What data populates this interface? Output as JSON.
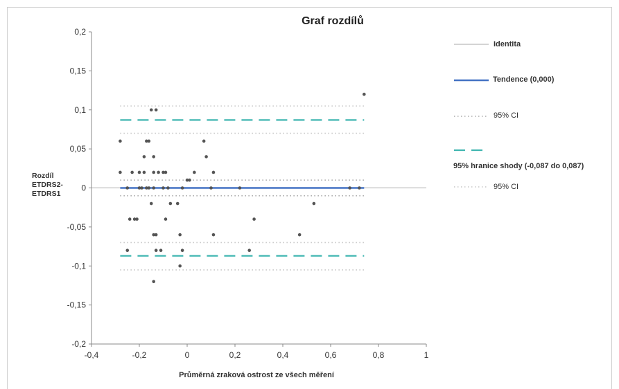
{
  "chart_data": {
    "type": "scatter",
    "title": "Graf rozdílů",
    "xlabel": "Průměrná zraková ostrost ze všech měření",
    "ylabel": [
      "Rozdíl",
      "ETDRS2-",
      "ETDRS1"
    ],
    "xlim": [
      -0.4,
      1
    ],
    "ylim": [
      -0.2,
      0.2
    ],
    "x_ticks": [
      "-0,4",
      "-0,2",
      "0",
      "0,2",
      "0,4",
      "0,6",
      "0,8",
      "1"
    ],
    "y_ticks": [
      "0,2",
      "0,15",
      "0,1",
      "0,05",
      "0",
      "-0,05",
      "-0,1",
      "-0,15",
      "-0,2"
    ],
    "grid": false,
    "legend_position": "right",
    "reference_lines": {
      "identity": 0,
      "tendence": 0.0,
      "loa_lower": -0.087,
      "loa_upper": 0.087,
      "tendence_ci": [
        -0.01,
        0.01
      ],
      "loa_upper_ci": [
        0.07,
        0.105
      ],
      "loa_lower_ci": [
        -0.105,
        -0.07
      ],
      "line_x_range": [
        -0.28,
        0.74
      ]
    },
    "legend": [
      {
        "label": "Identita",
        "style": "thin-gray",
        "bold": true
      },
      {
        "label": "Tendence (0,000)",
        "style": "thick-blue",
        "bold": true
      },
      {
        "label": "95% CI",
        "style": "dotted-gray",
        "bold": false
      },
      {
        "label": "95% hranice shody (-0,087 do 0,087)",
        "style": "dashed-teal",
        "bold": true
      },
      {
        "label": "95% CI",
        "style": "dotted-light",
        "bold": false
      }
    ],
    "points": [
      [
        -0.28,
        0.06
      ],
      [
        -0.28,
        0.02
      ],
      [
        -0.25,
        0.0
      ],
      [
        -0.25,
        -0.08
      ],
      [
        -0.24,
        -0.04
      ],
      [
        -0.23,
        0.02
      ],
      [
        -0.22,
        -0.04
      ],
      [
        -0.21,
        -0.04
      ],
      [
        -0.2,
        0.0
      ],
      [
        -0.2,
        0.02
      ],
      [
        -0.19,
        0.0
      ],
      [
        -0.18,
        0.04
      ],
      [
        -0.18,
        0.02
      ],
      [
        -0.17,
        0.06
      ],
      [
        -0.17,
        0.0
      ],
      [
        -0.16,
        0.06
      ],
      [
        -0.16,
        0.0
      ],
      [
        -0.15,
        -0.02
      ],
      [
        -0.15,
        0.1
      ],
      [
        -0.14,
        0.04
      ],
      [
        -0.14,
        0.02
      ],
      [
        -0.14,
        0.0
      ],
      [
        -0.14,
        -0.06
      ],
      [
        -0.14,
        -0.12
      ],
      [
        -0.13,
        0.1
      ],
      [
        -0.13,
        -0.06
      ],
      [
        -0.13,
        -0.08
      ],
      [
        -0.12,
        0.02
      ],
      [
        -0.11,
        -0.08
      ],
      [
        -0.1,
        0.02
      ],
      [
        -0.1,
        0.0
      ],
      [
        -0.09,
        -0.04
      ],
      [
        -0.09,
        0.02
      ],
      [
        -0.08,
        0.0
      ],
      [
        -0.07,
        -0.02
      ],
      [
        -0.04,
        -0.02
      ],
      [
        -0.03,
        -0.1
      ],
      [
        -0.03,
        -0.06
      ],
      [
        -0.02,
        0.0
      ],
      [
        -0.02,
        -0.08
      ],
      [
        0.0,
        0.01
      ],
      [
        0.01,
        0.01
      ],
      [
        0.03,
        0.02
      ],
      [
        0.07,
        0.06
      ],
      [
        0.08,
        0.04
      ],
      [
        0.1,
        0.0
      ],
      [
        0.11,
        0.02
      ],
      [
        0.11,
        -0.06
      ],
      [
        0.22,
        0.0
      ],
      [
        0.26,
        -0.08
      ],
      [
        0.28,
        -0.04
      ],
      [
        0.47,
        -0.06
      ],
      [
        0.53,
        -0.02
      ],
      [
        0.68,
        0.0
      ],
      [
        0.72,
        0.0
      ],
      [
        0.74,
        0.12
      ]
    ]
  }
}
